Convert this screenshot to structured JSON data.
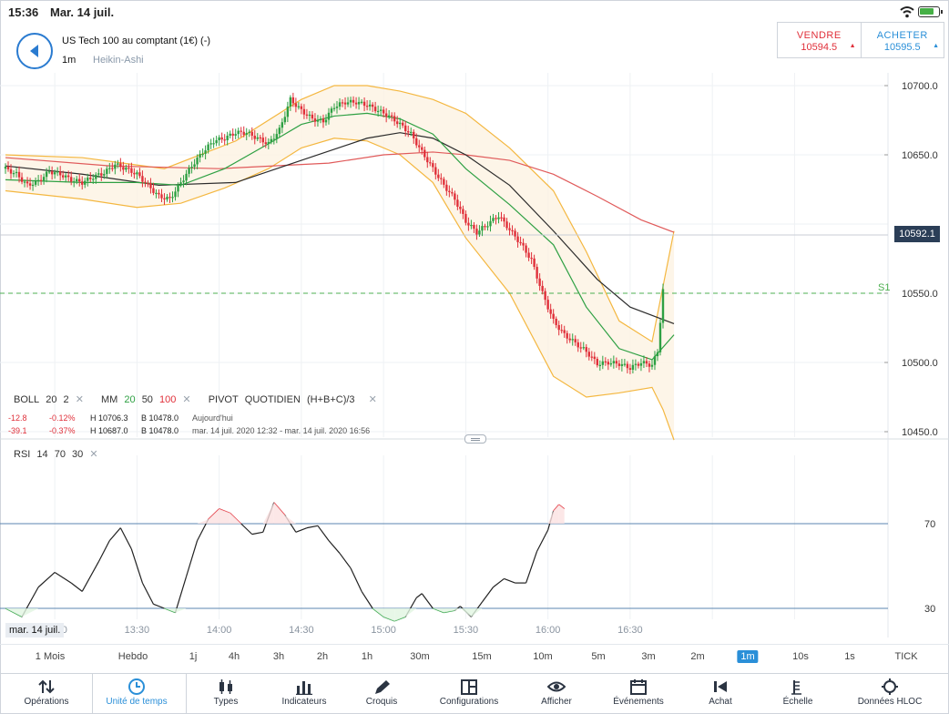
{
  "status_bar": {
    "time": "15:36",
    "date": "Mar. 14 juil."
  },
  "header": {
    "instrument": "US Tech 100 au comptant (1€) (-)",
    "timeframe": "1m",
    "chart_type": "Heikin-Ashi"
  },
  "trade": {
    "sell_label": "VENDRE",
    "sell_price": "10594.5",
    "buy_label": "ACHETER",
    "buy_price": "10595.5"
  },
  "colors": {
    "accent": "#2a8fd8",
    "up": "#2ea043",
    "down": "#e0303a",
    "boll": "#f4b740",
    "ma50": "#2b2b2b",
    "ma100": "#e05a5a",
    "pivot": "#4caf50"
  },
  "legend": {
    "boll": {
      "name": "BOLL",
      "p1": "20",
      "p2": "2"
    },
    "ma": {
      "name": "MM",
      "p1": "20",
      "p2": "50",
      "p3": "100"
    },
    "pivot": {
      "name": "PIVOT",
      "type": "QUOTIDIEN",
      "formula": "(H+B+C)/3"
    },
    "row1": {
      "chg": "-12.8",
      "pct": "-0.12%",
      "high": "H 10706.3",
      "low": "B 10478.0",
      "period": "Aujourd'hui"
    },
    "row2": {
      "chg": "-39.1",
      "pct": "-0.37%",
      "high": "H 10687.0",
      "low": "B 10478.0",
      "period": "mar. 14 juil. 2020 12:32 - mar. 14 juil. 2020 16:56"
    }
  },
  "current_price": "10592.1",
  "rsi": {
    "name": "RSI",
    "p1": "14",
    "p2": "70",
    "p3": "30"
  },
  "chart_data": {
    "type": "candlestick",
    "subtype": "Heikin-Ashi",
    "ylim": [
      10444,
      10715
    ],
    "y_ticks": [
      "10700.0",
      "10650.0",
      "10550.0",
      "10500.0",
      "10450.0"
    ],
    "pivot_label": "S1",
    "pivot_value": 10550,
    "x_ticks": [
      "13:00",
      "13:30",
      "14:00",
      "14:30",
      "15:00",
      "15:30",
      "16:00",
      "16:30"
    ],
    "x_start_label": "mar. 14 juil.",
    "x_range_minutes": [
      762,
      1002
    ],
    "close_path": [
      [
        762,
        10640
      ],
      [
        766,
        10636
      ],
      [
        770,
        10628
      ],
      [
        774,
        10631
      ],
      [
        778,
        10638
      ],
      [
        782,
        10636
      ],
      [
        786,
        10632
      ],
      [
        790,
        10630
      ],
      [
        794,
        10634
      ],
      [
        798,
        10637
      ],
      [
        802,
        10643
      ],
      [
        806,
        10640
      ],
      [
        810,
        10636
      ],
      [
        814,
        10628
      ],
      [
        818,
        10620
      ],
      [
        822,
        10618
      ],
      [
        826,
        10630
      ],
      [
        830,
        10642
      ],
      [
        834,
        10652
      ],
      [
        838,
        10660
      ],
      [
        842,
        10662
      ],
      [
        846,
        10666
      ],
      [
        850,
        10666
      ],
      [
        854,
        10662
      ],
      [
        858,
        10658
      ],
      [
        862,
        10668
      ],
      [
        866,
        10690
      ],
      [
        870,
        10682
      ],
      [
        874,
        10676
      ],
      [
        878,
        10674
      ],
      [
        882,
        10685
      ],
      [
        886,
        10688
      ],
      [
        890,
        10688
      ],
      [
        894,
        10686
      ],
      [
        898,
        10682
      ],
      [
        902,
        10678
      ],
      [
        906,
        10672
      ],
      [
        910,
        10665
      ],
      [
        914,
        10652
      ],
      [
        918,
        10640
      ],
      [
        922,
        10628
      ],
      [
        926,
        10618
      ],
      [
        930,
        10602
      ],
      [
        934,
        10594
      ],
      [
        938,
        10600
      ],
      [
        942,
        10606
      ],
      [
        946,
        10596
      ],
      [
        950,
        10586
      ],
      [
        954,
        10574
      ],
      [
        958,
        10550
      ],
      [
        962,
        10530
      ],
      [
        966,
        10520
      ],
      [
        970,
        10514
      ],
      [
        974,
        10508
      ],
      [
        978,
        10499
      ],
      [
        982,
        10500
      ],
      [
        986,
        10499
      ],
      [
        990,
        10496
      ],
      [
        994,
        10500
      ],
      [
        998,
        10498
      ],
      [
        1000,
        10508
      ],
      [
        1002,
        10552
      ],
      [
        1004,
        10580
      ],
      [
        1006,
        10592
      ]
    ],
    "ma20_path": [
      [
        762,
        10632
      ],
      [
        790,
        10630
      ],
      [
        810,
        10630
      ],
      [
        826,
        10628
      ],
      [
        842,
        10640
      ],
      [
        858,
        10658
      ],
      [
        870,
        10672
      ],
      [
        882,
        10678
      ],
      [
        894,
        10680
      ],
      [
        906,
        10676
      ],
      [
        918,
        10665
      ],
      [
        930,
        10640
      ],
      [
        946,
        10614
      ],
      [
        962,
        10585
      ],
      [
        974,
        10540
      ],
      [
        986,
        10510
      ],
      [
        998,
        10502
      ],
      [
        1006,
        10520
      ]
    ],
    "ma50_path": [
      [
        762,
        10642
      ],
      [
        790,
        10636
      ],
      [
        818,
        10628
      ],
      [
        846,
        10630
      ],
      [
        870,
        10646
      ],
      [
        894,
        10662
      ],
      [
        906,
        10666
      ],
      [
        918,
        10662
      ],
      [
        930,
        10650
      ],
      [
        946,
        10628
      ],
      [
        962,
        10595
      ],
      [
        978,
        10560
      ],
      [
        990,
        10540
      ],
      [
        1006,
        10528
      ]
    ],
    "ma100_path": [
      [
        762,
        10648
      ],
      [
        800,
        10642
      ],
      [
        840,
        10640
      ],
      [
        880,
        10644
      ],
      [
        900,
        10650
      ],
      [
        918,
        10652
      ],
      [
        930,
        10650
      ],
      [
        946,
        10646
      ],
      [
        962,
        10636
      ],
      [
        978,
        10620
      ],
      [
        994,
        10603
      ],
      [
        1006,
        10594
      ]
    ],
    "boll_upper_path": [
      [
        762,
        10650
      ],
      [
        790,
        10648
      ],
      [
        820,
        10640
      ],
      [
        846,
        10660
      ],
      [
        870,
        10690
      ],
      [
        882,
        10700
      ],
      [
        894,
        10700
      ],
      [
        906,
        10696
      ],
      [
        918,
        10690
      ],
      [
        930,
        10680
      ],
      [
        946,
        10655
      ],
      [
        962,
        10624
      ],
      [
        974,
        10580
      ],
      [
        986,
        10530
      ],
      [
        998,
        10515
      ],
      [
        1006,
        10595
      ]
    ],
    "boll_lower_path": [
      [
        762,
        10624
      ],
      [
        790,
        10618
      ],
      [
        810,
        10612
      ],
      [
        826,
        10615
      ],
      [
        842,
        10626
      ],
      [
        858,
        10640
      ],
      [
        870,
        10655
      ],
      [
        882,
        10662
      ],
      [
        894,
        10660
      ],
      [
        906,
        10650
      ],
      [
        918,
        10630
      ],
      [
        930,
        10590
      ],
      [
        946,
        10550
      ],
      [
        962,
        10490
      ],
      [
        974,
        10475
      ],
      [
        986,
        10478
      ],
      [
        998,
        10482
      ],
      [
        1002,
        10466
      ],
      [
        1006,
        10444
      ]
    ],
    "rsi_ylim": [
      22,
      88
    ],
    "rsi_levels": [
      70,
      30
    ],
    "rsi_path": [
      [
        762,
        30
      ],
      [
        768,
        26
      ],
      [
        774,
        40
      ],
      [
        780,
        47
      ],
      [
        786,
        42
      ],
      [
        790,
        38
      ],
      [
        796,
        52
      ],
      [
        800,
        62
      ],
      [
        804,
        68
      ],
      [
        808,
        58
      ],
      [
        812,
        42
      ],
      [
        816,
        32
      ],
      [
        820,
        30
      ],
      [
        824,
        28
      ],
      [
        828,
        45
      ],
      [
        832,
        62
      ],
      [
        836,
        72
      ],
      [
        840,
        77
      ],
      [
        844,
        75
      ],
      [
        848,
        70
      ],
      [
        852,
        65
      ],
      [
        856,
        66
      ],
      [
        860,
        80
      ],
      [
        864,
        74
      ],
      [
        868,
        66
      ],
      [
        872,
        68
      ],
      [
        876,
        69
      ],
      [
        880,
        62
      ],
      [
        884,
        56
      ],
      [
        888,
        49
      ],
      [
        892,
        38
      ],
      [
        896,
        30
      ],
      [
        900,
        26
      ],
      [
        904,
        24
      ],
      [
        908,
        26
      ],
      [
        912,
        35
      ],
      [
        914,
        37
      ],
      [
        918,
        30
      ],
      [
        922,
        28
      ],
      [
        926,
        29
      ],
      [
        928,
        31
      ],
      [
        932,
        26
      ],
      [
        936,
        33
      ],
      [
        940,
        40
      ],
      [
        944,
        44
      ],
      [
        948,
        42
      ],
      [
        952,
        42
      ],
      [
        956,
        57
      ],
      [
        960,
        67
      ],
      [
        962,
        76
      ],
      [
        964,
        79
      ],
      [
        966,
        77
      ]
    ]
  },
  "timeframes": [
    "1 Mois",
    "Hebdo",
    "1j",
    "4h",
    "3h",
    "2h",
    "1h",
    "30m",
    "15m",
    "10m",
    "5m",
    "3m",
    "2m",
    "1m",
    "10s",
    "1s",
    "TICK"
  ],
  "active_timeframe": "1m",
  "toolbar": [
    {
      "label": "Opérations",
      "icon": "sort-arrows-icon"
    },
    {
      "label": "Unité de temps",
      "icon": "clock-icon"
    },
    {
      "label": "Types",
      "icon": "candles-icon"
    },
    {
      "label": "Indicateurs",
      "icon": "bar-chart-icon"
    },
    {
      "label": "Croquis",
      "icon": "pencil-icon"
    },
    {
      "label": "Configurations",
      "icon": "layout-icon"
    },
    {
      "label": "Afficher",
      "icon": "eye-icon"
    },
    {
      "label": "Événements",
      "icon": "calendar-icon"
    },
    {
      "label": "Achat",
      "icon": "megaphone-icon"
    },
    {
      "label": "Échelle",
      "icon": "scale-icon"
    },
    {
      "label": "Données HLOC",
      "icon": "crosshair-icon"
    }
  ],
  "active_tool": "Unité de temps"
}
